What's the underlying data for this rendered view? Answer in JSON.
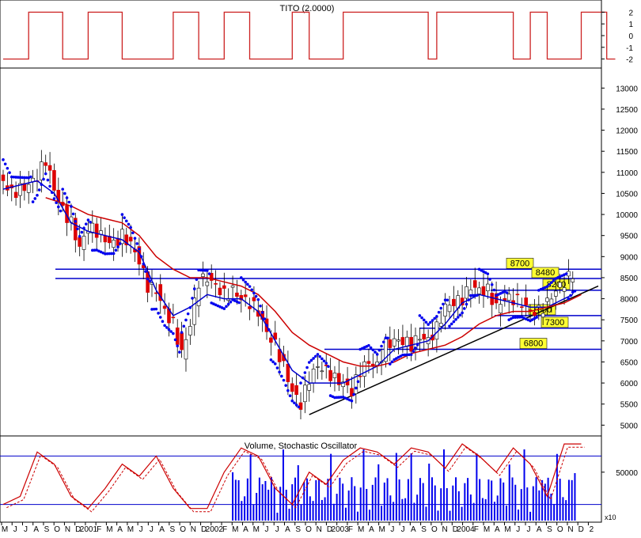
{
  "chart_data": [
    {
      "type": "line",
      "title": "TITO (2.0000)",
      "ylim": [
        -2.5,
        2.5
      ],
      "y_ticks": [
        "2",
        "1",
        "0",
        "-1",
        "-2"
      ],
      "grid": false,
      "line_color": "#cc2222",
      "steps": [
        [
          0,
          -2
        ],
        [
          3,
          -2
        ],
        [
          3,
          2
        ],
        [
          7,
          2
        ],
        [
          7,
          -2
        ],
        [
          10,
          -2
        ],
        [
          10,
          2
        ],
        [
          14,
          2
        ],
        [
          14,
          -2
        ],
        [
          20,
          -2
        ],
        [
          20,
          2
        ],
        [
          23,
          2
        ],
        [
          23,
          -2
        ],
        [
          26,
          -2
        ],
        [
          26,
          2
        ],
        [
          29,
          2
        ],
        [
          29,
          -2
        ],
        [
          34,
          -2
        ],
        [
          34,
          2
        ],
        [
          36,
          2
        ],
        [
          36,
          -2
        ],
        [
          40,
          -2
        ],
        [
          40,
          2
        ],
        [
          50,
          2
        ],
        [
          50,
          -2
        ],
        [
          51,
          -2
        ],
        [
          51,
          2
        ],
        [
          60,
          2
        ],
        [
          60,
          -2
        ],
        [
          62,
          -2
        ],
        [
          62,
          2
        ],
        [
          64,
          2
        ],
        [
          64,
          -2
        ],
        [
          68,
          -2
        ],
        [
          68,
          2
        ],
        [
          71,
          2
        ],
        [
          71,
          -2
        ],
        [
          72,
          -2
        ]
      ]
    },
    {
      "type": "line",
      "chart_kind": "candlestick",
      "ylim": [
        4800,
        13400
      ],
      "y_ticks": [
        "13000",
        "12500",
        "12000",
        "11500",
        "11000",
        "10500",
        "10000",
        "9500",
        "9000",
        "8500",
        "8000",
        "7500",
        "7000",
        "6500",
        "6000",
        "5500",
        "5000"
      ],
      "x_ticks": [
        "M",
        "J",
        "J",
        "A",
        "S",
        "O",
        "N",
        "D",
        "2001",
        "F",
        "M",
        "A",
        "M",
        "J",
        "J",
        "A",
        "S",
        "O",
        "N",
        "D",
        "2002",
        "F",
        "M",
        "A",
        "M",
        "J",
        "J",
        "A",
        "S",
        "O",
        "N",
        "D",
        "2003",
        "F",
        "M",
        "A",
        "M",
        "J",
        "J",
        "A",
        "S",
        "O",
        "N",
        "D",
        "2004",
        "F",
        "M",
        "A",
        "M",
        "J",
        "J",
        "A",
        "S",
        "O",
        "N",
        "D",
        "2"
      ],
      "grid": false,
      "price_path": [
        [
          0,
          10800
        ],
        [
          1,
          10500
        ],
        [
          2,
          10600
        ],
        [
          3,
          10700
        ],
        [
          4,
          10900
        ],
        [
          5,
          11300
        ],
        [
          6,
          10600
        ],
        [
          7,
          10100
        ],
        [
          8,
          9800
        ],
        [
          9,
          9200
        ],
        [
          10,
          9700
        ],
        [
          11,
          9600
        ],
        [
          12,
          9400
        ],
        [
          13,
          9300
        ],
        [
          14,
          9500
        ],
        [
          15,
          9300
        ],
        [
          16,
          8900
        ],
        [
          17,
          8300
        ],
        [
          18,
          8200
        ],
        [
          19,
          7700
        ],
        [
          20,
          7400
        ],
        [
          21,
          6700
        ],
        [
          22,
          7400
        ],
        [
          23,
          8400
        ],
        [
          24,
          8500
        ],
        [
          25,
          8300
        ],
        [
          26,
          8100
        ],
        [
          27,
          8200
        ],
        [
          28,
          8000
        ],
        [
          29,
          7900
        ],
        [
          30,
          7700
        ],
        [
          31,
          7200
        ],
        [
          32,
          6900
        ],
        [
          33,
          6400
        ],
        [
          34,
          5800
        ],
        [
          35,
          5500
        ],
        [
          36,
          6100
        ],
        [
          37,
          6400
        ],
        [
          38,
          6300
        ],
        [
          39,
          6100
        ],
        [
          40,
          6000
        ],
        [
          41,
          5800
        ],
        [
          42,
          6300
        ],
        [
          43,
          6500
        ],
        [
          44,
          6400
        ],
        [
          45,
          6900
        ],
        [
          46,
          7000
        ],
        [
          47,
          7000
        ],
        [
          48,
          6900
        ],
        [
          49,
          7100
        ],
        [
          50,
          7000
        ],
        [
          51,
          7300
        ],
        [
          52,
          7800
        ],
        [
          53,
          7900
        ],
        [
          54,
          8000
        ],
        [
          55,
          8300
        ],
        [
          56,
          8200
        ],
        [
          57,
          8200
        ],
        [
          58,
          7800
        ],
        [
          59,
          8000
        ],
        [
          60,
          8000
        ],
        [
          61,
          7900
        ],
        [
          62,
          7700
        ],
        [
          63,
          7700
        ],
        [
          64,
          7900
        ],
        [
          65,
          8200
        ],
        [
          66,
          8400
        ],
        [
          67,
          8600
        ]
      ],
      "series": [
        {
          "name": "",
          "color": "#0000cc",
          "values": [
            [
              0,
              10600
            ],
            [
              4,
              10800
            ],
            [
              6,
              10500
            ],
            [
              8,
              9800
            ],
            [
              10,
              9600
            ],
            [
              14,
              9400
            ],
            [
              16,
              9100
            ],
            [
              18,
              8200
            ],
            [
              20,
              7600
            ],
            [
              22,
              7800
            ],
            [
              24,
              8100
            ],
            [
              26,
              8000
            ],
            [
              28,
              8000
            ],
            [
              30,
              7700
            ],
            [
              32,
              7000
            ],
            [
              34,
              6300
            ],
            [
              36,
              6000
            ],
            [
              38,
              6000
            ],
            [
              40,
              6000
            ],
            [
              42,
              6200
            ],
            [
              44,
              6400
            ],
            [
              46,
              6800
            ],
            [
              48,
              6900
            ],
            [
              50,
              7000
            ],
            [
              52,
              7400
            ],
            [
              54,
              7900
            ],
            [
              56,
              8100
            ],
            [
              58,
              8000
            ],
            [
              60,
              7900
            ],
            [
              62,
              7800
            ],
            [
              64,
              7800
            ],
            [
              66,
              8000
            ],
            [
              67,
              8100
            ]
          ]
        },
        {
          "name": "",
          "color": "#cc0000",
          "values": [
            [
              5,
              10400
            ],
            [
              8,
              10200
            ],
            [
              10,
              10000
            ],
            [
              14,
              9800
            ],
            [
              16,
              9500
            ],
            [
              18,
              9000
            ],
            [
              20,
              8700
            ],
            [
              22,
              8500
            ],
            [
              24,
              8500
            ],
            [
              26,
              8400
            ],
            [
              28,
              8300
            ],
            [
              30,
              8100
            ],
            [
              32,
              7700
            ],
            [
              34,
              7200
            ],
            [
              36,
              6900
            ],
            [
              38,
              6700
            ],
            [
              40,
              6500
            ],
            [
              42,
              6400
            ],
            [
              44,
              6400
            ],
            [
              46,
              6500
            ],
            [
              48,
              6700
            ],
            [
              50,
              6800
            ],
            [
              52,
              6900
            ],
            [
              54,
              7100
            ],
            [
              56,
              7400
            ],
            [
              58,
              7600
            ],
            [
              60,
              7700
            ],
            [
              62,
              7700
            ],
            [
              64,
              7800
            ],
            [
              66,
              7900
            ],
            [
              68,
              8100
            ]
          ]
        }
      ],
      "horizontal_levels": [
        {
          "label": "8700",
          "value": 8700
        },
        {
          "label": "8480",
          "value": 8480
        },
        {
          "label": "8200",
          "value": 8200
        },
        {
          "label": "7600",
          "value": 7600
        },
        {
          "label": "7300",
          "value": 7300
        },
        {
          "label": "6800",
          "value": 6800
        }
      ],
      "trend_line": [
        [
          36,
          5250
        ],
        [
          70,
          8300
        ]
      ],
      "level_color": "#0000cc",
      "label_box_color": "#ffff33"
    },
    {
      "type": "bar",
      "title": "Volume, Stochastic Oscillator",
      "y_ticks": [
        "50000"
      ],
      "x_ticks": [
        "M",
        "J",
        "J",
        "A",
        "S",
        "O",
        "N",
        "D",
        "2001",
        "F",
        "M",
        "A",
        "M",
        "J",
        "J",
        "A",
        "S",
        "O",
        "N",
        "D",
        "2002",
        "F",
        "M",
        "A",
        "M",
        "J",
        "J",
        "A",
        "S",
        "O",
        "N",
        "D",
        "2003",
        "F",
        "M",
        "A",
        "M",
        "J",
        "J",
        "A",
        "S",
        "O",
        "N",
        "D",
        "2004",
        "F",
        "M",
        "A",
        "M",
        "J",
        "J",
        "A",
        "S",
        "O",
        "N",
        "D",
        "2"
      ],
      "x_axis_note": "x10",
      "grid": false,
      "volume_color": "#0000ee",
      "stochastic_color": "#cc0000",
      "stochastic_levels": [
        80,
        20
      ],
      "stochastic_k": [
        [
          0,
          20
        ],
        [
          2,
          30
        ],
        [
          4,
          85
        ],
        [
          6,
          70
        ],
        [
          8,
          30
        ],
        [
          10,
          15
        ],
        [
          12,
          40
        ],
        [
          14,
          70
        ],
        [
          16,
          55
        ],
        [
          18,
          80
        ],
        [
          20,
          40
        ],
        [
          22,
          15
        ],
        [
          24,
          15
        ],
        [
          26,
          60
        ],
        [
          28,
          90
        ],
        [
          30,
          80
        ],
        [
          32,
          40
        ],
        [
          34,
          20
        ],
        [
          36,
          60
        ],
        [
          38,
          45
        ],
        [
          40,
          75
        ],
        [
          42,
          90
        ],
        [
          44,
          85
        ],
        [
          46,
          70
        ],
        [
          48,
          90
        ],
        [
          50,
          85
        ],
        [
          52,
          65
        ],
        [
          54,
          95
        ],
        [
          56,
          80
        ],
        [
          58,
          60
        ],
        [
          60,
          90
        ],
        [
          62,
          70
        ],
        [
          64,
          30
        ],
        [
          66,
          95
        ],
        [
          68,
          95
        ]
      ]
    }
  ]
}
